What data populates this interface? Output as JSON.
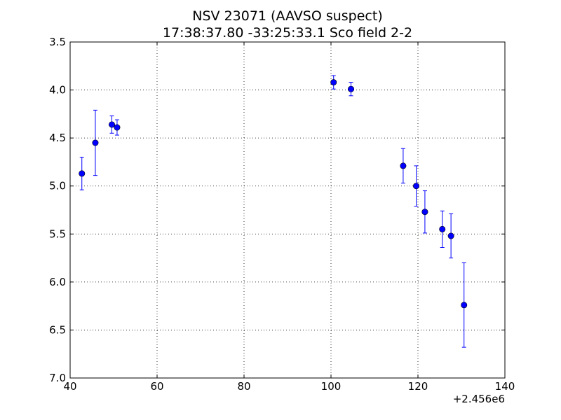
{
  "chart_data": {
    "type": "scatter",
    "title": "NSV 23071  (AAVSO suspect)",
    "subtitle": "17:38:37.80 -33:25:33.1 Sco field 2-2",
    "xlabel": "",
    "ylabel": "",
    "x_offset_label": "+2.456e6",
    "xlim": [
      40,
      140
    ],
    "ylim": [
      7.0,
      3.5
    ],
    "y_inverted": true,
    "grid": true,
    "legend": "none",
    "x_ticks": [
      40,
      60,
      80,
      100,
      120,
      140
    ],
    "x_tick_labels": [
      "40",
      "60",
      "80",
      "100",
      "120",
      "140"
    ],
    "y_ticks": [
      3.5,
      4.0,
      4.5,
      5.0,
      5.5,
      6.0,
      6.5,
      7.0
    ],
    "y_tick_labels": [
      "3.5",
      "4.0",
      "4.5",
      "5.0",
      "5.5",
      "6.0",
      "6.5",
      "7.0"
    ],
    "marker_color": "#0000ff",
    "series": [
      {
        "x": [
          42.7,
          45.8,
          49.6,
          50.8,
          100.6,
          104.6,
          116.6,
          119.6,
          121.6,
          125.6,
          127.6,
          130.6
        ],
        "y": [
          4.87,
          4.55,
          4.36,
          4.39,
          3.92,
          3.99,
          4.79,
          5.0,
          5.27,
          5.45,
          5.52,
          6.24
        ],
        "err": [
          0.17,
          0.34,
          0.09,
          0.08,
          0.07,
          0.07,
          0.18,
          0.21,
          0.22,
          0.19,
          0.23,
          0.44
        ]
      }
    ]
  }
}
